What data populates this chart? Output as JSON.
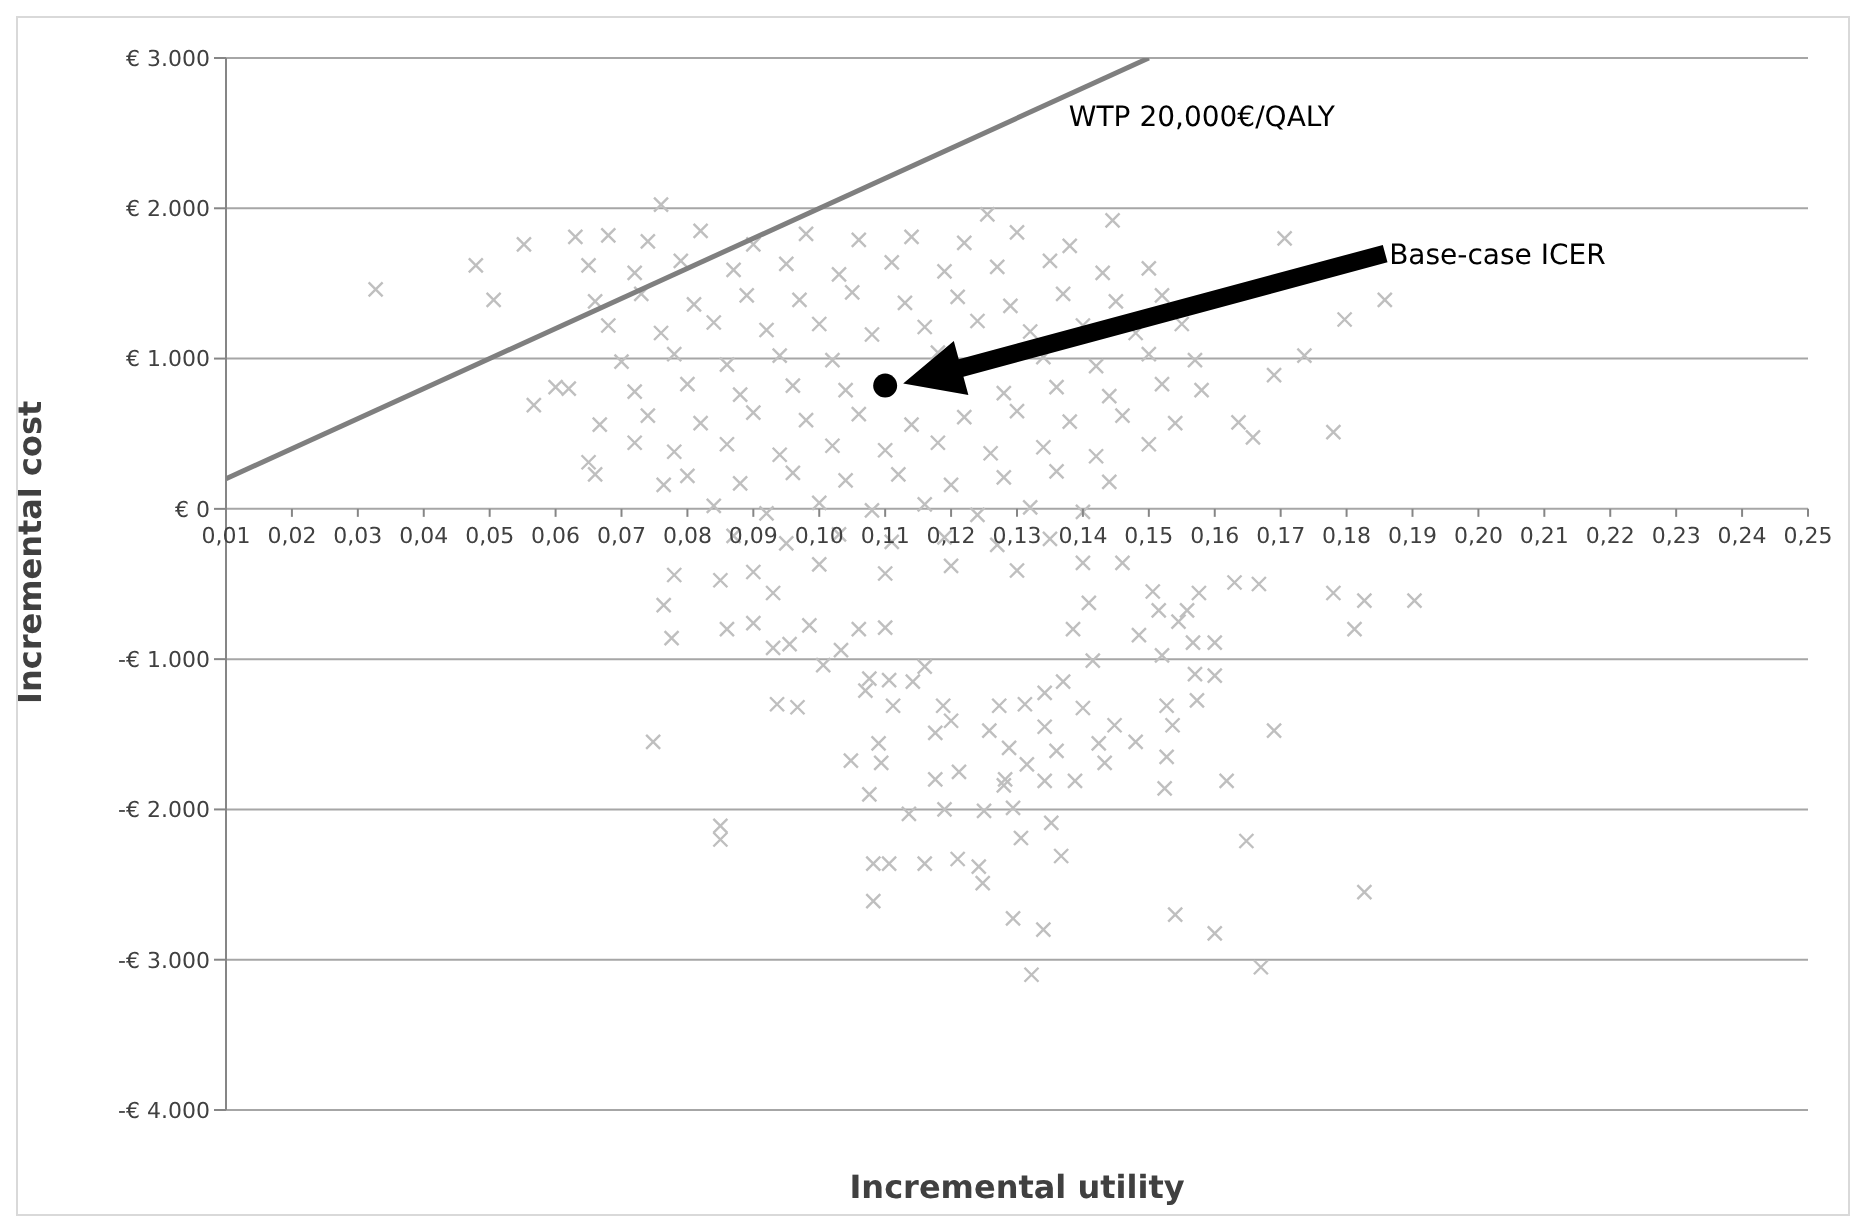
{
  "chart_data": {
    "type": "scatter",
    "xlabel": "Incremental  utility",
    "ylabel": "Incremental cost",
    "xlim": [
      0.01,
      0.25
    ],
    "xticks": [
      {
        "value": 0.01,
        "label": "0,01"
      },
      {
        "value": 0.02,
        "label": "0,02"
      },
      {
        "value": 0.03,
        "label": "0,03"
      },
      {
        "value": 0.04,
        "label": "0,04"
      },
      {
        "value": 0.05,
        "label": "0,05"
      },
      {
        "value": 0.06,
        "label": "0,06"
      },
      {
        "value": 0.07,
        "label": "0,07"
      },
      {
        "value": 0.08,
        "label": "0,08"
      },
      {
        "value": 0.09,
        "label": "0,09"
      },
      {
        "value": 0.1,
        "label": "0,10"
      },
      {
        "value": 0.11,
        "label": "0,11"
      },
      {
        "value": 0.12,
        "label": "0,12"
      },
      {
        "value": 0.13,
        "label": "0,13"
      },
      {
        "value": 0.14,
        "label": "0,14"
      },
      {
        "value": 0.15,
        "label": "0,15"
      },
      {
        "value": 0.16,
        "label": "0,16"
      },
      {
        "value": 0.17,
        "label": "0,17"
      },
      {
        "value": 0.18,
        "label": "0,18"
      },
      {
        "value": 0.19,
        "label": "0,19"
      },
      {
        "value": 0.2,
        "label": "0,20"
      },
      {
        "value": 0.21,
        "label": "0,21"
      },
      {
        "value": 0.22,
        "label": "0,22"
      },
      {
        "value": 0.23,
        "label": "0,23"
      },
      {
        "value": 0.24,
        "label": "0,24"
      },
      {
        "value": 0.25,
        "label": "0,25"
      }
    ],
    "ylim": [
      -4000,
      3000
    ],
    "yticks": [
      {
        "value": -4000,
        "label": "-€ 4.000"
      },
      {
        "value": -3000,
        "label": "-€ 3.000"
      },
      {
        "value": -2000,
        "label": "-€ 2.000"
      },
      {
        "value": -1000,
        "label": "-€ 1.000"
      },
      {
        "value": 0,
        "label": "€ 0"
      },
      {
        "value": 1000,
        "label": "€ 1.000"
      },
      {
        "value": 2000,
        "label": "€ 2.000"
      },
      {
        "value": 3000,
        "label": "€ 3.000"
      }
    ],
    "grid": "y",
    "series": [
      {
        "marker": "cross",
        "color": "#bfbfbf",
        "x": [
          0.0327,
          0.076,
          0.0479,
          0.0506,
          0.0552,
          0.0567,
          0.06,
          0.062,
          0.065,
          0.066,
          0.0667,
          0.063,
          0.072,
          0.0764,
          0.1255,
          0.1445,
          0.1706,
          0.1858,
          0.1797,
          0.1736,
          0.169,
          0.178,
          0.1636,
          0.1658,
          0.0748,
          0.085,
          0.085,
          0.0936,
          0.078,
          0.0764,
          0.0776,
          0.085,
          0.086,
          0.09,
          0.093,
          0.093,
          0.0967,
          0.1048,
          0.1076,
          0.1082,
          0.1082,
          0.1106,
          0.116,
          0.121,
          0.1242,
          0.1248,
          0.1136,
          0.119,
          0.125,
          0.1294,
          0.1306,
          0.1352,
          0.1367,
          0.1294,
          0.134,
          0.1322,
          0.154,
          0.16,
          0.167,
          0.1648,
          0.1827,
          0.169,
          0.1618,
          0.1524,
          0.1527,
          0.1536,
          0.1573,
          0.16,
          0.157,
          0.1527,
          0.148,
          0.1448,
          0.1415,
          0.14,
          0.137,
          0.1424,
          0.1433,
          0.1388,
          0.1342,
          0.1315,
          0.1342,
          0.136,
          0.1288,
          0.1282,
          0.128,
          0.1258,
          0.1273,
          0.1312,
          0.1342,
          0.1176,
          0.12,
          0.1188,
          0.1212,
          0.1176,
          0.109,
          0.1094,
          0.1112,
          0.107,
          0.1076,
          0.1106,
          0.1142,
          0.116,
          0.1827,
          0.178,
          0.1812,
          0.1903,
          0.1667,
          0.163,
          0.16,
          0.1567,
          0.152,
          0.1485,
          0.1545,
          0.1558,
          0.1576,
          0.1506,
          0.1515,
          0.146,
          0.1409,
          0.1385,
          0.106,
          0.11,
          0.0985,
          0.1033,
          0.1006,
          0.0955,
          0.068,
          0.074,
          0.082,
          0.09,
          0.098,
          0.106,
          0.114,
          0.122,
          0.13,
          0.138,
          0.065,
          0.072,
          0.079,
          0.087,
          0.095,
          0.103,
          0.111,
          0.119,
          0.127,
          0.135,
          0.143,
          0.15,
          0.066,
          0.073,
          0.081,
          0.089,
          0.097,
          0.105,
          0.113,
          0.121,
          0.129,
          0.137,
          0.145,
          0.152,
          0.068,
          0.076,
          0.084,
          0.092,
          0.1,
          0.108,
          0.116,
          0.124,
          0.132,
          0.14,
          0.148,
          0.155,
          0.07,
          0.078,
          0.086,
          0.094,
          0.102,
          0.118,
          0.134,
          0.142,
          0.15,
          0.157,
          0.072,
          0.08,
          0.088,
          0.096,
          0.104,
          0.128,
          0.136,
          0.144,
          0.152,
          0.158,
          0.074,
          0.082,
          0.09,
          0.098,
          0.106,
          0.114,
          0.122,
          0.13,
          0.138,
          0.146,
          0.154,
          0.078,
          0.086,
          0.094,
          0.102,
          0.11,
          0.118,
          0.126,
          0.134,
          0.142,
          0.15,
          0.08,
          0.088,
          0.096,
          0.104,
          0.112,
          0.12,
          0.128,
          0.136,
          0.144,
          0.084,
          0.092,
          0.1,
          0.108,
          0.116,
          0.124,
          0.132,
          0.14,
          0.087,
          0.095,
          0.103,
          0.111,
          0.119,
          0.127,
          0.135,
          0.09,
          0.1,
          0.11,
          0.12,
          0.13,
          0.14
        ],
        "values": [
          1460,
          2025,
          1620,
          1390,
          1760,
          690,
          810,
          800,
          310,
          230,
          560,
          1810,
          440,
          160,
          1960,
          1920,
          1800,
          1390,
          1260,
          1020,
          890,
          510,
          575,
          475,
          -1550,
          -2110,
          -2200,
          -1300,
          -440,
          -640,
          -860,
          -475,
          -800,
          -760,
          -560,
          -925,
          -1320,
          -1675,
          -1900,
          -2360,
          -2610,
          -2360,
          -2360,
          -2330,
          -2380,
          -2490,
          -2030,
          -2000,
          -2010,
          -1990,
          -2190,
          -2090,
          -2310,
          -2725,
          -2800,
          -3100,
          -2700,
          -2825,
          -3050,
          -2210,
          -2550,
          -1475,
          -1810,
          -1860,
          -1650,
          -1440,
          -1275,
          -1110,
          -1100,
          -1310,
          -1550,
          -1440,
          -1010,
          -1325,
          -1150,
          -1560,
          -1690,
          -1810,
          -1810,
          -1700,
          -1450,
          -1610,
          -1590,
          -1800,
          -1840,
          -1475,
          -1310,
          -1300,
          -1225,
          -1490,
          -1410,
          -1310,
          -1750,
          -1800,
          -1560,
          -1690,
          -1310,
          -1210,
          -1130,
          -1140,
          -1150,
          -1050,
          -610,
          -560,
          -800,
          -610,
          -500,
          -490,
          -890,
          -890,
          -975,
          -840,
          -750,
          -675,
          -560,
          -550,
          -675,
          -360,
          -625,
          -800,
          -800,
          -790,
          -775,
          -940,
          -1040,
          -900,
          1820,
          1780,
          1850,
          1760,
          1830,
          1790,
          1810,
          1770,
          1840,
          1750,
          1620,
          1570,
          1650,
          1590,
          1630,
          1560,
          1640,
          1580,
          1610,
          1650,
          1570,
          1600,
          1380,
          1430,
          1360,
          1420,
          1390,
          1440,
          1370,
          1410,
          1350,
          1430,
          1380,
          1420,
          1220,
          1170,
          1240,
          1190,
          1230,
          1160,
          1210,
          1250,
          1180,
          1220,
          1170,
          1230,
          980,
          1030,
          960,
          1020,
          990,
          1040,
          1010,
          950,
          1030,
          990,
          780,
          830,
          760,
          820,
          790,
          770,
          810,
          750,
          830,
          790,
          620,
          570,
          640,
          590,
          630,
          560,
          610,
          650,
          580,
          620,
          570,
          380,
          430,
          360,
          420,
          390,
          440,
          370,
          410,
          350,
          430,
          220,
          170,
          240,
          190,
          230,
          160,
          210,
          250,
          180,
          20,
          -30,
          40,
          -10,
          30,
          -40,
          10,
          -20,
          -180,
          -230,
          -170,
          -220,
          -190,
          -240,
          -200,
          -420,
          -370,
          -430,
          -380,
          -410,
          -360
        ]
      },
      {
        "type": "line",
        "name": "WTP 20,000€/QALY",
        "marker": "none",
        "color": "#7f7f7f",
        "x": [
          0.01,
          0.15
        ],
        "values": [
          200,
          3000
        ]
      },
      {
        "type": "scatter",
        "marker": "circle",
        "color": "#000000",
        "x": [
          0.11
        ],
        "values": [
          820
        ]
      }
    ],
    "annotations": [
      "Base-case ICER"
    ]
  }
}
